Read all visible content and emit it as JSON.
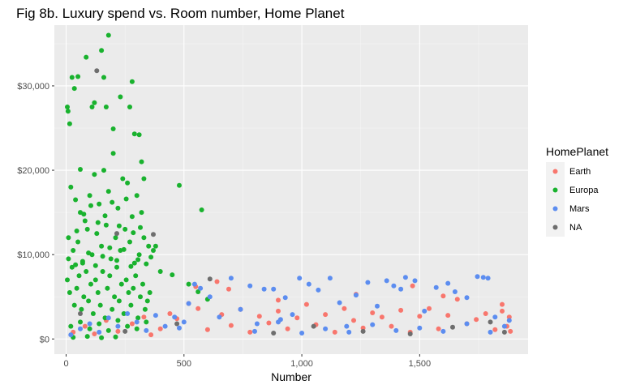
{
  "chart_data": {
    "type": "scatter",
    "title": "Fig 8b. Luxury spend vs. Room number, Home Planet",
    "xlabel": "Number",
    "ylabel": "",
    "xlim": [
      -50,
      1960
    ],
    "ylim": [
      -1800,
      37200
    ],
    "x_ticks": [
      0,
      500,
      1000,
      1500
    ],
    "x_tick_labels": [
      "0",
      "500",
      "1,000",
      "1,500"
    ],
    "y_ticks": [
      0,
      10000,
      20000,
      30000
    ],
    "y_tick_labels": [
      "$0",
      "$10,000",
      "$20,000",
      "$30,000"
    ],
    "grid": true,
    "legend": {
      "title": "HomePlanet",
      "position": "right",
      "entries": [
        "Earth",
        "Europa",
        "Mars",
        "NA"
      ]
    },
    "colors": {
      "Earth": "#F8766D",
      "Europa": "#19B22E",
      "Mars": "#5C8DF0",
      "NA": "#6E6E6E",
      "panel": "#EBEBEB",
      "grid_major": "#FFFFFF"
    },
    "series": [
      {
        "name": "Earth",
        "note": "dense band along bottom, x 0-1890, y ~0-3500",
        "points": [
          [
            30,
            800
          ],
          [
            80,
            1500
          ],
          [
            120,
            600
          ],
          [
            170,
            2200
          ],
          [
            220,
            900
          ],
          [
            280,
            1800
          ],
          [
            330,
            2600
          ],
          [
            360,
            500
          ],
          [
            400,
            1200
          ],
          [
            440,
            3000
          ],
          [
            470,
            2400
          ],
          [
            520,
            4200
          ],
          [
            560,
            3600
          ],
          [
            600,
            1100
          ],
          [
            640,
            6800
          ],
          [
            660,
            2900
          ],
          [
            700,
            1600
          ],
          [
            740,
            3500
          ],
          [
            780,
            800
          ],
          [
            820,
            2700
          ],
          [
            860,
            1900
          ],
          [
            900,
            3300
          ],
          [
            940,
            1200
          ],
          [
            980,
            2500
          ],
          [
            1020,
            4100
          ],
          [
            1060,
            1700
          ],
          [
            1100,
            2900
          ],
          [
            1140,
            800
          ],
          [
            1180,
            3600
          ],
          [
            1220,
            2200
          ],
          [
            1260,
            1300
          ],
          [
            1300,
            3100
          ],
          [
            1340,
            2600
          ],
          [
            1380,
            1500
          ],
          [
            1420,
            3400
          ],
          [
            1460,
            800
          ],
          [
            1470,
            6300
          ],
          [
            1500,
            2700
          ],
          [
            1540,
            3600
          ],
          [
            1580,
            1200
          ],
          [
            1620,
            2800
          ],
          [
            1660,
            4700
          ],
          [
            1700,
            1800
          ],
          [
            1740,
            2300
          ],
          [
            1780,
            3000
          ],
          [
            1820,
            1100
          ],
          [
            1850,
            3300
          ],
          [
            1870,
            1500
          ],
          [
            1880,
            2600
          ],
          [
            1885,
            900
          ],
          [
            550,
            6200
          ],
          [
            690,
            5900
          ],
          [
            900,
            4600
          ],
          [
            1230,
            5300
          ],
          [
            1600,
            5100
          ],
          [
            1850,
            4100
          ]
        ]
      },
      {
        "name": "Europa",
        "note": "large cluster at x 0-380, y up to ~36000",
        "points": [
          [
            5,
            27500
          ],
          [
            8,
            27000
          ],
          [
            15,
            25500
          ],
          [
            25,
            31000
          ],
          [
            35,
            29700
          ],
          [
            50,
            31100
          ],
          [
            60,
            20100
          ],
          [
            85,
            33400
          ],
          [
            110,
            27500
          ],
          [
            120,
            28000
          ],
          [
            150,
            34200
          ],
          [
            160,
            31000
          ],
          [
            170,
            27500
          ],
          [
            180,
            36000
          ],
          [
            200,
            24900
          ],
          [
            230,
            28700
          ],
          [
            270,
            27500
          ],
          [
            280,
            30500
          ],
          [
            290,
            24300
          ],
          [
            310,
            24200
          ],
          [
            320,
            21000
          ],
          [
            330,
            19000
          ],
          [
            480,
            18200
          ],
          [
            575,
            15300
          ],
          [
            20,
            18000
          ],
          [
            40,
            16500
          ],
          [
            60,
            15000
          ],
          [
            80,
            14000
          ],
          [
            100,
            17000
          ],
          [
            120,
            19500
          ],
          [
            140,
            16000
          ],
          [
            160,
            20000
          ],
          [
            180,
            17500
          ],
          [
            200,
            22000
          ],
          [
            220,
            15500
          ],
          [
            240,
            19000
          ],
          [
            260,
            18500
          ],
          [
            280,
            14500
          ],
          [
            300,
            17000
          ],
          [
            320,
            15000
          ],
          [
            10,
            12000
          ],
          [
            30,
            10500
          ],
          [
            50,
            11500
          ],
          [
            70,
            9000
          ],
          [
            90,
            13000
          ],
          [
            110,
            10000
          ],
          [
            130,
            12500
          ],
          [
            150,
            11000
          ],
          [
            170,
            13500
          ],
          [
            190,
            9500
          ],
          [
            210,
            12000
          ],
          [
            230,
            10500
          ],
          [
            250,
            13000
          ],
          [
            270,
            11500
          ],
          [
            290,
            9000
          ],
          [
            310,
            10000
          ],
          [
            330,
            12000
          ],
          [
            350,
            11000
          ],
          [
            370,
            10500
          ],
          [
            380,
            11000
          ],
          [
            400,
            8000
          ],
          [
            450,
            7600
          ],
          [
            520,
            6500
          ],
          [
            560,
            5600
          ],
          [
            600,
            4700
          ],
          [
            5,
            7000
          ],
          [
            15,
            5500
          ],
          [
            25,
            8500
          ],
          [
            35,
            4000
          ],
          [
            45,
            6000
          ],
          [
            55,
            7500
          ],
          [
            65,
            3500
          ],
          [
            75,
            5000
          ],
          [
            85,
            8000
          ],
          [
            95,
            4500
          ],
          [
            105,
            6500
          ],
          [
            115,
            3000
          ],
          [
            125,
            7000
          ],
          [
            135,
            5500
          ],
          [
            145,
            4000
          ],
          [
            155,
            8000
          ],
          [
            165,
            2500
          ],
          [
            175,
            6000
          ],
          [
            185,
            7500
          ],
          [
            195,
            3500
          ],
          [
            205,
            5000
          ],
          [
            215,
            8500
          ],
          [
            225,
            4500
          ],
          [
            235,
            6500
          ],
          [
            245,
            3000
          ],
          [
            255,
            7000
          ],
          [
            265,
            5500
          ],
          [
            275,
            4000
          ],
          [
            285,
            6000
          ],
          [
            295,
            7500
          ],
          [
            305,
            2500
          ],
          [
            315,
            5000
          ],
          [
            325,
            6500
          ],
          [
            335,
            3500
          ],
          [
            345,
            4500
          ],
          [
            355,
            5500
          ],
          [
            20,
            1500
          ],
          [
            60,
            2000
          ],
          [
            100,
            1200
          ],
          [
            140,
            1800
          ],
          [
            180,
            1000
          ],
          [
            220,
            2200
          ],
          [
            260,
            1500
          ],
          [
            300,
            1200
          ],
          [
            340,
            2000
          ],
          [
            30,
            200
          ],
          [
            90,
            300
          ],
          [
            150,
            150
          ],
          [
            210,
            250
          ],
          [
            10,
            9500
          ],
          [
            40,
            8800
          ],
          [
            70,
            9200
          ],
          [
            95,
            10200
          ],
          [
            125,
            8700
          ],
          [
            155,
            9800
          ],
          [
            185,
            10800
          ],
          [
            215,
            9300
          ],
          [
            245,
            10600
          ],
          [
            275,
            8600
          ],
          [
            305,
            9400
          ],
          [
            340,
            8900
          ],
          [
            360,
            9700
          ],
          [
            45,
            12800
          ],
          [
            75,
            14800
          ],
          [
            105,
            15800
          ],
          [
            135,
            13800
          ],
          [
            165,
            14600
          ],
          [
            195,
            16200
          ],
          [
            225,
            13400
          ],
          [
            255,
            16600
          ],
          [
            285,
            12600
          ],
          [
            315,
            13200
          ]
        ]
      },
      {
        "name": "Mars",
        "note": "band x 0-1890, y ~0-7300",
        "points": [
          [
            20,
            500
          ],
          [
            60,
            1200
          ],
          [
            100,
            1800
          ],
          [
            140,
            800
          ],
          [
            180,
            2500
          ],
          [
            220,
            1500
          ],
          [
            260,
            3000
          ],
          [
            300,
            2000
          ],
          [
            340,
            1000
          ],
          [
            380,
            2800
          ],
          [
            420,
            1500
          ],
          [
            460,
            2600
          ],
          [
            480,
            1300
          ],
          [
            500,
            2000
          ],
          [
            520,
            4200
          ],
          [
            545,
            6500
          ],
          [
            570,
            6000
          ],
          [
            610,
            5000
          ],
          [
            650,
            2600
          ],
          [
            700,
            7200
          ],
          [
            740,
            3500
          ],
          [
            780,
            6300
          ],
          [
            810,
            1800
          ],
          [
            840,
            5900
          ],
          [
            880,
            5900
          ],
          [
            910,
            2300
          ],
          [
            930,
            4900
          ],
          [
            960,
            2900
          ],
          [
            990,
            7200
          ],
          [
            1030,
            6500
          ],
          [
            1070,
            5800
          ],
          [
            1120,
            7200
          ],
          [
            1160,
            4300
          ],
          [
            1190,
            1500
          ],
          [
            1230,
            5200
          ],
          [
            1280,
            6700
          ],
          [
            1320,
            3900
          ],
          [
            1360,
            6900
          ],
          [
            1390,
            6300
          ],
          [
            1420,
            5900
          ],
          [
            1440,
            7300
          ],
          [
            1480,
            6900
          ],
          [
            1520,
            3300
          ],
          [
            1570,
            6100
          ],
          [
            1620,
            6600
          ],
          [
            1650,
            5600
          ],
          [
            1700,
            4900
          ],
          [
            1745,
            7400
          ],
          [
            1770,
            7300
          ],
          [
            1790,
            7200
          ],
          [
            1820,
            2600
          ],
          [
            1860,
            1500
          ],
          [
            1880,
            2200
          ],
          [
            900,
            2000
          ],
          [
            1100,
            1200
          ],
          [
            1300,
            1700
          ],
          [
            1500,
            1300
          ],
          [
            1700,
            1800
          ],
          [
            800,
            900
          ],
          [
            1000,
            700
          ],
          [
            1200,
            800
          ],
          [
            1400,
            1000
          ],
          [
            1600,
            900
          ],
          [
            1800,
            800
          ]
        ]
      },
      {
        "name": "NA",
        "note": "sparse gray points",
        "points": [
          [
            130,
            31800
          ],
          [
            215,
            12500
          ],
          [
            370,
            12400
          ],
          [
            610,
            7100
          ],
          [
            60,
            3000
          ],
          [
            250,
            900
          ],
          [
            470,
            1800
          ],
          [
            880,
            700
          ],
          [
            1050,
            1500
          ],
          [
            1260,
            900
          ],
          [
            1460,
            600
          ],
          [
            1640,
            1400
          ],
          [
            1800,
            2000
          ],
          [
            1860,
            800
          ]
        ]
      }
    ]
  }
}
